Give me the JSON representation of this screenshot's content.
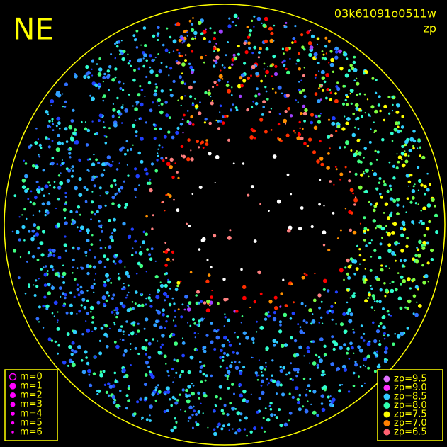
{
  "header": {
    "direction": "NE",
    "frame_id": "03k61091o0511w",
    "mode": "zp"
  },
  "legend_m": {
    "items": [
      {
        "label": "m=0"
      },
      {
        "label": "m=1"
      },
      {
        "label": "m=2"
      },
      {
        "label": "m=3"
      },
      {
        "label": "m=4"
      },
      {
        "label": "m=5"
      },
      {
        "label": "m=6"
      }
    ],
    "color": "#ff00ff"
  },
  "legend_zp": {
    "items": [
      {
        "label": "zp=9.5",
        "color": "#e070ff"
      },
      {
        "label": "zp=9.0",
        "color": "#ff30ff"
      },
      {
        "label": "zp=8.5",
        "color": "#30c8ff"
      },
      {
        "label": "zp=8.0",
        "color": "#30ffb0"
      },
      {
        "label": "zp=7.5",
        "color": "#ffff00"
      },
      {
        "label": "zp=7.0",
        "color": "#ff8000"
      },
      {
        "label": "zp=6.5",
        "color": "#ff6070"
      }
    ]
  }
}
